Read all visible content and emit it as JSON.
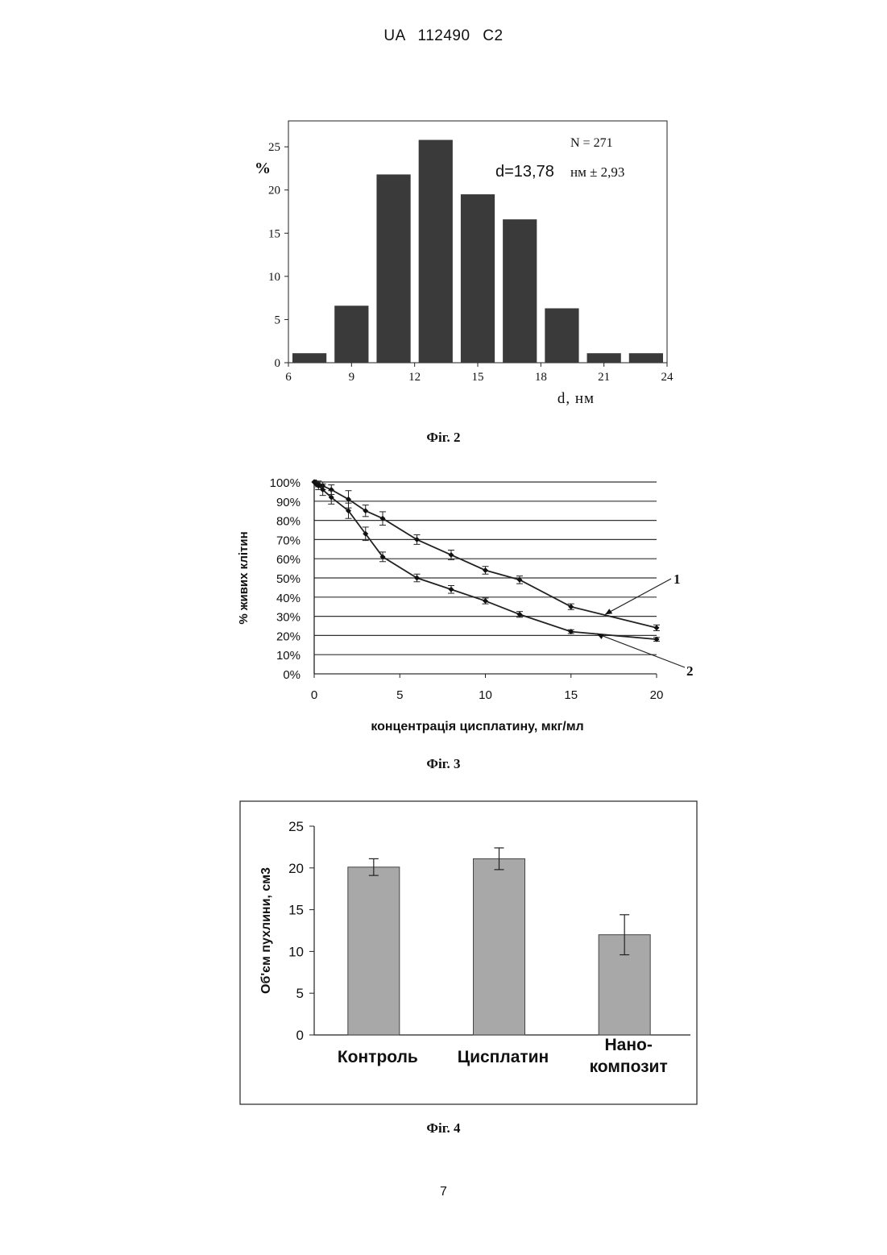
{
  "header": "UA   112490   C2",
  "page_number": "7",
  "figures": [
    {
      "caption": "Фіг. 2"
    },
    {
      "caption": "Фіг. 3"
    },
    {
      "caption": "Фіг. 4"
    }
  ],
  "chart_data": [
    {
      "type": "bar",
      "ylabel": "%",
      "xlabel": "d, нм",
      "xlim": [
        6,
        24
      ],
      "ylim": [
        0,
        28
      ],
      "x_ticks": [
        "6",
        "9",
        "12",
        "15",
        "18",
        "21",
        "24"
      ],
      "y_ticks": [
        "0",
        "5",
        "10",
        "15",
        "20",
        "25"
      ],
      "annotation_n": "N = 271",
      "annotation_d_value": "d=13,78",
      "annotation_d_unit": "нм ± 2,93",
      "bins": [
        {
          "x0": 6,
          "x1": 8,
          "value": 1.1
        },
        {
          "x0": 8,
          "x1": 10,
          "value": 6.6
        },
        {
          "x0": 10,
          "x1": 12,
          "value": 21.8
        },
        {
          "x0": 12,
          "x1": 14,
          "value": 25.8
        },
        {
          "x0": 14,
          "x1": 16,
          "value": 19.5
        },
        {
          "x0": 16,
          "x1": 18,
          "value": 16.6
        },
        {
          "x0": 18,
          "x1": 20,
          "value": 6.3
        },
        {
          "x0": 20,
          "x1": 22,
          "value": 1.1
        },
        {
          "x0": 22,
          "x1": 24,
          "value": 1.1
        }
      ],
      "color": "#3a3a3a",
      "grid": false
    },
    {
      "type": "line",
      "ylabel": "% живих клітин",
      "xlabel": "концентрація цисплатину, мкг/мл",
      "xlim": [
        0,
        20
      ],
      "ylim": [
        0,
        100
      ],
      "x_ticks": [
        "0",
        "5",
        "10",
        "15",
        "20"
      ],
      "y_ticks": [
        "0%",
        "10%",
        "20%",
        "30%",
        "40%",
        "50%",
        "60%",
        "70%",
        "80%",
        "90%",
        "100%"
      ],
      "grid": true,
      "series": [
        {
          "name": "1",
          "x": [
            0,
            0.1,
            0.25,
            0.5,
            1,
            2,
            3,
            4,
            6,
            8,
            10,
            12,
            15,
            20
          ],
          "y": [
            100,
            100,
            99,
            98,
            96,
            91,
            85,
            81,
            70,
            62,
            54,
            49,
            35,
            24
          ],
          "err": [
            0,
            0,
            1.5,
            2,
            2.5,
            4.5,
            3,
            3.5,
            2.5,
            2.5,
            2,
            2,
            1.5,
            1.5
          ]
        },
        {
          "name": "2",
          "x": [
            0,
            0.1,
            0.25,
            0.5,
            1,
            2,
            3,
            4,
            6,
            8,
            10,
            12,
            15,
            20
          ],
          "y": [
            100,
            99,
            98,
            96,
            92,
            85,
            73,
            61,
            50,
            44,
            38,
            31,
            22,
            18
          ],
          "err": [
            0,
            0,
            2,
            3,
            3.5,
            4,
            3.5,
            2.5,
            2,
            2,
            1.5,
            1.5,
            1,
            1
          ]
        }
      ]
    },
    {
      "type": "bar",
      "ylabel": "Об'єм пухлини, см3",
      "xlabel": "",
      "ylim": [
        0,
        25
      ],
      "y_ticks": [
        "0",
        "5",
        "10",
        "15",
        "20",
        "25"
      ],
      "categories": [
        "Контроль",
        "Цисплатин",
        "Нано-|композит"
      ],
      "values": [
        20.1,
        21.1,
        12.0
      ],
      "errors": [
        1.0,
        1.3,
        2.4
      ],
      "color": "#a8a8a8",
      "grid": false
    }
  ]
}
